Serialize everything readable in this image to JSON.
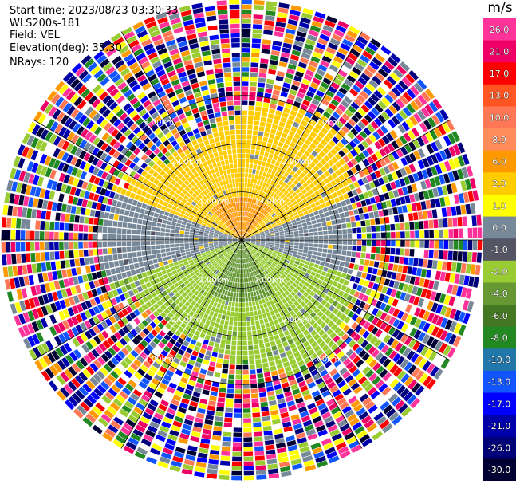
{
  "header": {
    "start_time": "Start time: 2023/08/23 03:30:33",
    "site": "WLS200s-181",
    "field": "Field: VEL",
    "elevation": "Elevation(deg): 35.30",
    "nrays": "NRays: 120"
  },
  "colorbar": {
    "unit": "m/s",
    "ticks": [
      "26.0",
      "21.0",
      "17.0",
      "13.0",
      "10.0",
      "8.0",
      "6.0",
      "2.0",
      "1.0",
      "0.0",
      "-1.0",
      "-2.0",
      "-4.0",
      "-6.0",
      "-8.0",
      "-10.0",
      "-13.0",
      "-17.0",
      "-21.0",
      "-26.0",
      "-30.0"
    ],
    "colors": [
      "#ff3399",
      "#ee0066",
      "#ff0000",
      "#ff5522",
      "#ff7755",
      "#ff8c5a",
      "#ff9900",
      "#ffcc00",
      "#ffff00",
      "#778899",
      "#555566",
      "#99cc33",
      "#669933",
      "#447722",
      "#228822",
      "#2277aa",
      "#1155ff",
      "#0000ff",
      "#0000aa",
      "#000077",
      "#000033"
    ]
  },
  "chart_data": {
    "type": "ppi-velocity",
    "field": "VEL",
    "units": "m/s",
    "nrays": 120,
    "range_ring_labels_km": [
      "1.00km",
      "2.00km",
      "3.00km"
    ],
    "range_rings_km": [
      1,
      2,
      3
    ],
    "max_range_km": 5.0,
    "azimuth_spokes_deg": [
      0,
      30,
      60,
      90,
      120,
      150,
      180,
      210,
      240,
      270,
      300,
      330
    ],
    "regions": [
      {
        "name": "near-north",
        "velocity_ms": 6.0
      },
      {
        "name": "north",
        "velocity_ms": 1.5
      },
      {
        "name": "east-west",
        "velocity_ms": 0.0
      },
      {
        "name": "south",
        "velocity_ms": -2.0
      },
      {
        "name": "near-south",
        "velocity_ms": -5.0
      },
      {
        "name": "far-field",
        "velocity_ms": "noise"
      }
    ]
  }
}
